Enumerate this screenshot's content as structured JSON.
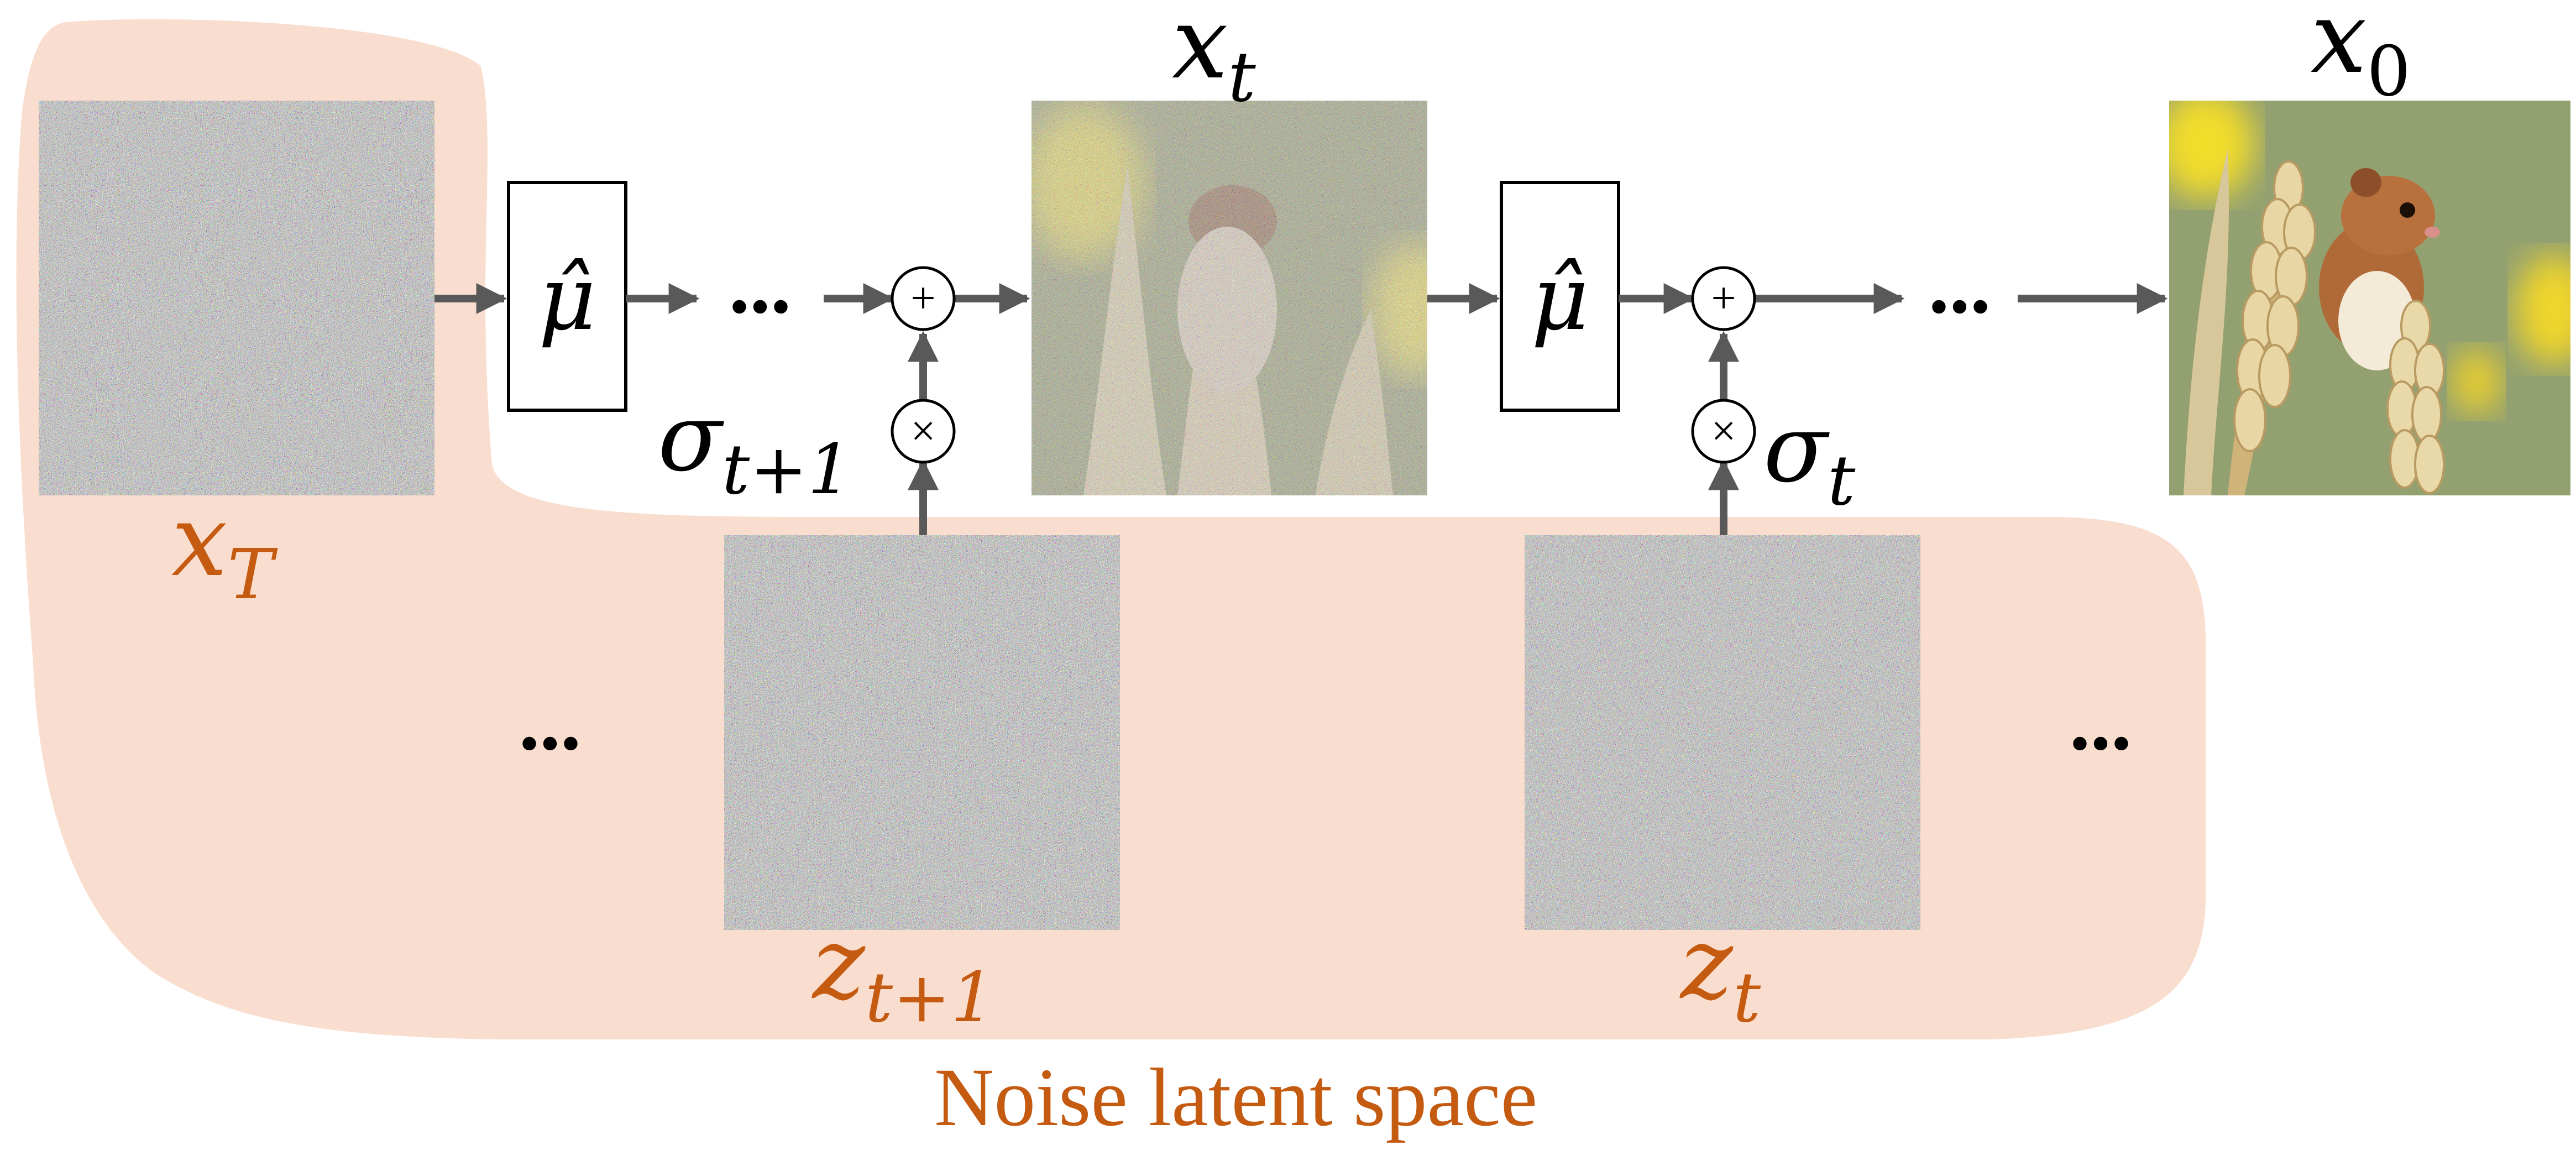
{
  "colors": {
    "background": "#ffffff",
    "latent_region": "#f9ddce",
    "latent_text": "#c55a11",
    "arrow": "#595959",
    "label": "#000000",
    "box_stroke": "#000000"
  },
  "labels": {
    "x_T": {
      "base": "x",
      "sub": "T"
    },
    "x_t": {
      "base": "x",
      "sub": "t"
    },
    "x_0": {
      "base": "x",
      "sub": "0"
    },
    "z_t1": {
      "base": "z",
      "sub": "t+1"
    },
    "z_t": {
      "base": "z",
      "sub": "t"
    },
    "sigma_t1": {
      "base": "σ",
      "sub": "t+1"
    },
    "sigma_t": {
      "base": "σ",
      "sub": "t"
    },
    "mu_hat_1": "μ̂",
    "mu_hat_2": "μ̂",
    "plus_symbol": "+",
    "times_symbol": "×",
    "ellipsis": "...",
    "region_caption": "Noise latent space"
  },
  "images": {
    "x_T": "pure-noise-image",
    "x_t": "noisy-mouse-image",
    "x_0": "clean-mouse-on-wheat-photo",
    "z_t1": "noise-sample-image",
    "z_t": "noise-sample-image"
  }
}
